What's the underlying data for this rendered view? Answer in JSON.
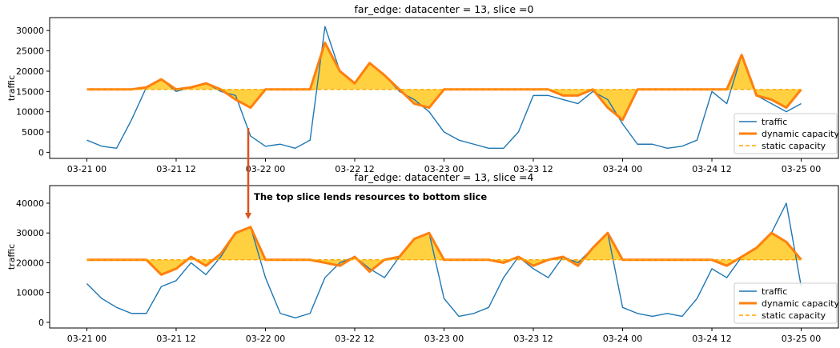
{
  "annotation": {
    "text": "The top slice lends resources to bottom slice"
  },
  "chart_data": [
    {
      "type": "line",
      "title": "far_edge: datacenter = 13, slice =0",
      "y_label": "traffic",
      "x": [
        "03-21 00",
        "03-21 02",
        "03-21 04",
        "03-21 06",
        "03-21 08",
        "03-21 10",
        "03-21 12",
        "03-21 14",
        "03-21 16",
        "03-21 18",
        "03-21 20",
        "03-21 22",
        "03-22 00",
        "03-22 02",
        "03-22 04",
        "03-22 06",
        "03-22 08",
        "03-22 10",
        "03-22 12",
        "03-22 14",
        "03-22 16",
        "03-22 18",
        "03-22 20",
        "03-22 22",
        "03-23 00",
        "03-23 02",
        "03-23 04",
        "03-23 06",
        "03-23 08",
        "03-23 10",
        "03-23 12",
        "03-23 14",
        "03-23 16",
        "03-23 18",
        "03-23 20",
        "03-23 22",
        "03-24 00",
        "03-24 02",
        "03-24 04",
        "03-24 06",
        "03-24 08",
        "03-24 10",
        "03-24 12",
        "03-24 14",
        "03-24 16",
        "03-24 18",
        "03-24 20",
        "03-24 22",
        "03-25 00"
      ],
      "xlim": [
        "03-20 19",
        "03-25 05"
      ],
      "xticks": [
        "03-21 00",
        "03-21 12",
        "03-22 00",
        "03-22 12",
        "03-23 00",
        "03-23 12",
        "03-24 00",
        "03-24 12",
        "03-25 00"
      ],
      "ylim": [
        -1500,
        33200
      ],
      "yticks": [
        0,
        5000,
        10000,
        15000,
        20000,
        25000,
        30000
      ],
      "legend": "lower right",
      "series": [
        {
          "name": "traffic",
          "color": "#1f77b4",
          "values": [
            3000,
            1500,
            1000,
            8000,
            16000,
            18000,
            15000,
            16000,
            17000,
            15000,
            14000,
            4000,
            1500,
            2000,
            1000,
            3000,
            31000,
            20000,
            17000,
            22000,
            19000,
            15000,
            13000,
            10000,
            5000,
            3000,
            2000,
            1000,
            1000,
            5000,
            14000,
            14000,
            13000,
            12000,
            15000,
            13000,
            7000,
            2000,
            2000,
            1000,
            1500,
            3000,
            15000,
            12000,
            24000,
            14000,
            12000,
            10000,
            12000
          ]
        },
        {
          "name": "dynamic capacity",
          "color": "#ff7f0e",
          "values": [
            15500,
            15500,
            15500,
            15500,
            16000,
            18000,
            15500,
            16000,
            17000,
            15500,
            13000,
            11000,
            15500,
            15500,
            15500,
            15500,
            27000,
            20000,
            17000,
            22000,
            19000,
            15500,
            12000,
            11000,
            15500,
            15500,
            15500,
            15500,
            15500,
            15500,
            15500,
            15500,
            14000,
            14000,
            15500,
            11000,
            8000,
            15500,
            15500,
            15500,
            15500,
            15500,
            15500,
            15500,
            24000,
            14000,
            13000,
            11000,
            15500
          ]
        },
        {
          "name": "static capacity",
          "color": "#ffa500",
          "dashed": true,
          "values": [
            15500,
            15500,
            15500,
            15500,
            15500,
            15500,
            15500,
            15500,
            15500,
            15500,
            15500,
            15500,
            15500,
            15500,
            15500,
            15500,
            15500,
            15500,
            15500,
            15500,
            15500,
            15500,
            15500,
            15500,
            15500,
            15500,
            15500,
            15500,
            15500,
            15500,
            15500,
            15500,
            15500,
            15500,
            15500,
            15500,
            15500,
            15500,
            15500,
            15500,
            15500,
            15500,
            15500,
            15500,
            15500,
            15500,
            15500,
            15500,
            15500
          ]
        }
      ]
    },
    {
      "type": "line",
      "title": "far_edge: datacenter = 13, slice =4",
      "y_label": "traffic",
      "x": [
        "03-21 00",
        "03-21 02",
        "03-21 04",
        "03-21 06",
        "03-21 08",
        "03-21 10",
        "03-21 12",
        "03-21 14",
        "03-21 16",
        "03-21 18",
        "03-21 20",
        "03-21 22",
        "03-22 00",
        "03-22 02",
        "03-22 04",
        "03-22 06",
        "03-22 08",
        "03-22 10",
        "03-22 12",
        "03-22 14",
        "03-22 16",
        "03-22 18",
        "03-22 20",
        "03-22 22",
        "03-23 00",
        "03-23 02",
        "03-23 04",
        "03-23 06",
        "03-23 08",
        "03-23 10",
        "03-23 12",
        "03-23 14",
        "03-23 16",
        "03-23 18",
        "03-23 20",
        "03-23 22",
        "03-24 00",
        "03-24 02",
        "03-24 04",
        "03-24 06",
        "03-24 08",
        "03-24 10",
        "03-24 12",
        "03-24 14",
        "03-24 16",
        "03-24 18",
        "03-24 20",
        "03-24 22",
        "03-25 00"
      ],
      "xlim": [
        "03-20 19",
        "03-25 05"
      ],
      "xticks": [
        "03-21 00",
        "03-21 12",
        "03-22 00",
        "03-22 12",
        "03-23 00",
        "03-23 12",
        "03-24 00",
        "03-24 12",
        "03-25 00"
      ],
      "ylim": [
        -1900,
        45900
      ],
      "yticks": [
        0,
        10000,
        20000,
        30000,
        40000
      ],
      "legend": "lower right",
      "series": [
        {
          "name": "traffic",
          "color": "#1f77b4",
          "values": [
            13000,
            8000,
            5000,
            3000,
            3000,
            12000,
            14000,
            20000,
            16000,
            22000,
            30000,
            32000,
            15000,
            3000,
            1500,
            3000,
            15000,
            20000,
            22000,
            18000,
            15000,
            22000,
            28000,
            30000,
            8000,
            2000,
            3000,
            5000,
            15000,
            22000,
            18000,
            15000,
            22000,
            20000,
            25000,
            30000,
            5000,
            3000,
            2000,
            3000,
            2000,
            8000,
            18000,
            15000,
            22000,
            25000,
            30000,
            40000,
            12000
          ]
        },
        {
          "name": "dynamic capacity",
          "color": "#ff7f0e",
          "values": [
            21000,
            21000,
            21000,
            21000,
            21000,
            16000,
            18000,
            22000,
            19000,
            23000,
            30000,
            32000,
            21000,
            21000,
            21000,
            21000,
            20000,
            19000,
            22000,
            17000,
            21000,
            22000,
            28000,
            30000,
            21000,
            21000,
            21000,
            21000,
            20000,
            22000,
            19000,
            21000,
            22000,
            19000,
            25000,
            30000,
            21000,
            21000,
            21000,
            21000,
            21000,
            21000,
            21000,
            19000,
            22000,
            25000,
            30000,
            27000,
            21000
          ]
        },
        {
          "name": "static capacity",
          "color": "#ffa500",
          "dashed": true,
          "values": [
            21000,
            21000,
            21000,
            21000,
            21000,
            21000,
            21000,
            21000,
            21000,
            21000,
            21000,
            21000,
            21000,
            21000,
            21000,
            21000,
            21000,
            21000,
            21000,
            21000,
            21000,
            21000,
            21000,
            21000,
            21000,
            21000,
            21000,
            21000,
            21000,
            21000,
            21000,
            21000,
            21000,
            21000,
            21000,
            21000,
            21000,
            21000,
            21000,
            21000,
            21000,
            21000,
            21000,
            21000,
            21000,
            21000,
            21000,
            21000,
            21000
          ]
        }
      ]
    }
  ]
}
